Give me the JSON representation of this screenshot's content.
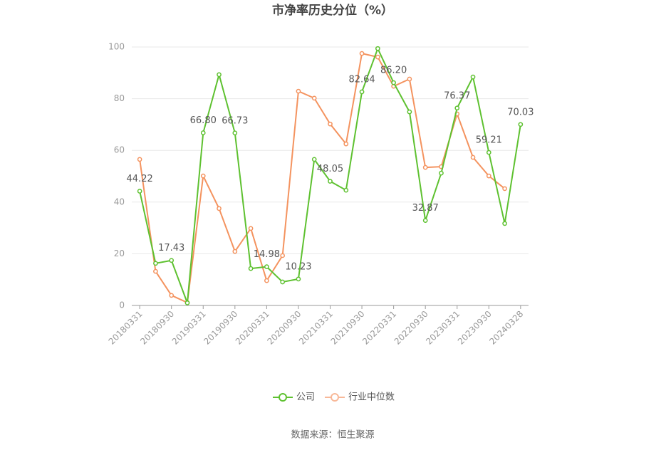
{
  "chart_data": {
    "type": "line",
    "title": "市净率历史分位（%）",
    "source": "数据来源：恒生聚源",
    "categories": [
      "20180331",
      null,
      "20180930",
      null,
      "20190331",
      null,
      "20190930",
      null,
      "20200331",
      null,
      "20200930",
      null,
      "20210331",
      null,
      "20210930",
      null,
      "20220331",
      null,
      "20220930",
      null,
      "20230331",
      null,
      "20230930",
      null,
      "20240328"
    ],
    "series": [
      {
        "name": "公司",
        "color": "#5ec130",
        "values": [
          44.22,
          16.3,
          17.43,
          1.0,
          66.8,
          89.3,
          66.73,
          14.3,
          14.98,
          9.1,
          10.23,
          56.5,
          48.05,
          44.6,
          82.64,
          99.4,
          86.2,
          74.9,
          32.87,
          51.2,
          76.37,
          88.4,
          59.21,
          31.7,
          70.03
        ],
        "value_labels": [
          "44.22",
          null,
          "17.43",
          null,
          "66.80",
          null,
          "66.73",
          null,
          "14.98",
          null,
          "10.23",
          null,
          "48.05",
          null,
          "82.64",
          null,
          "86.20",
          null,
          "32.87",
          null,
          "76.37",
          null,
          "59.21",
          null,
          "70.03"
        ]
      },
      {
        "name": "行业中位数",
        "color": "#f4935f",
        "values": [
          56.5,
          13.2,
          3.9,
          1.1,
          50.1,
          37.5,
          20.9,
          29.8,
          9.6,
          19.3,
          82.9,
          80.2,
          70.2,
          62.5,
          97.5,
          96.1,
          84.8,
          87.6,
          53.4,
          53.7,
          74.1,
          57.3,
          50.1,
          45.2,
          null
        ]
      }
    ],
    "ylim": [
      0,
      100
    ],
    "yticks": [
      0,
      20,
      40,
      60,
      80,
      100
    ],
    "grid": true
  }
}
